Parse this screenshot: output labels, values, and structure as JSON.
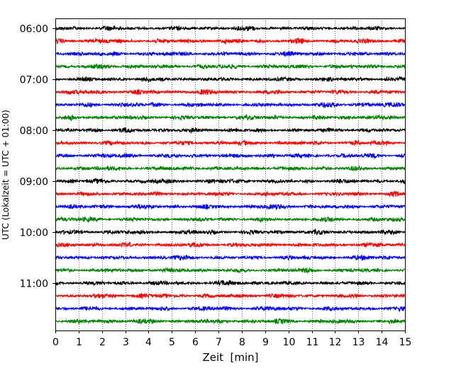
{
  "chart_data": {
    "type": "line",
    "title": "",
    "xlabel": "Zeit  [min]",
    "ylabel": "UTC (Lokalzeit = UTC + 01:00)",
    "xlim": [
      0,
      15
    ],
    "x_ticks": [
      0,
      1,
      2,
      3,
      4,
      5,
      6,
      7,
      8,
      9,
      10,
      11,
      12,
      13,
      14,
      15
    ],
    "x_tick_labels": [
      "0",
      "1",
      "2",
      "3",
      "4",
      "5",
      "6",
      "7",
      "8",
      "9",
      "10",
      "11",
      "12",
      "13",
      "14",
      "15"
    ],
    "y_tick_labels": [
      "06:00",
      "07:00",
      "08:00",
      "09:00",
      "10:00",
      "11:00"
    ],
    "y_tick_traces": [
      0,
      4,
      8,
      12,
      16,
      20
    ],
    "trace_interval_min": 15,
    "trace_count": 24,
    "trace_start_labels": [
      "06:00",
      "06:15",
      "06:30",
      "06:45",
      "07:00",
      "07:15",
      "07:30",
      "07:45",
      "08:00",
      "08:15",
      "08:30",
      "08:45",
      "09:00",
      "09:15",
      "09:30",
      "09:45",
      "10:00",
      "10:15",
      "10:30",
      "10:45",
      "11:00",
      "11:15",
      "11:30",
      "11:45"
    ],
    "trace_color_cycle": [
      "#000000",
      "#ff0000",
      "#0000ff",
      "#008000"
    ],
    "x_grid": "dotted vertical lines at each minute",
    "y_grid": false,
    "legend": "none"
  }
}
